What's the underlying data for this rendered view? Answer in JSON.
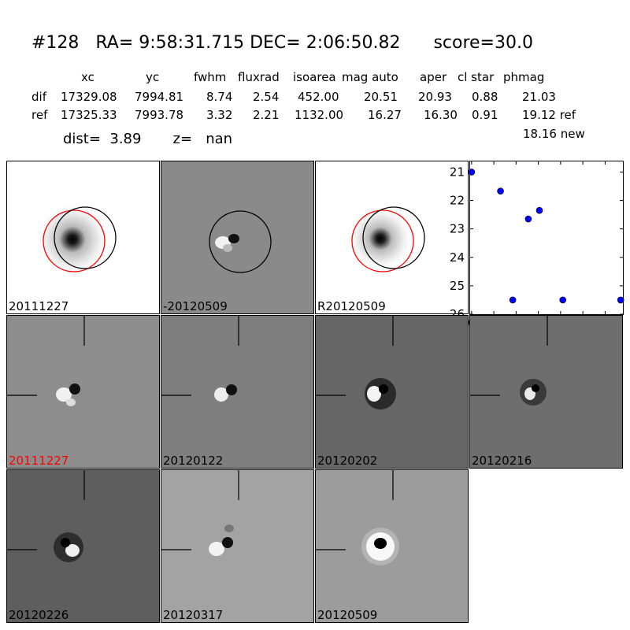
{
  "header": {
    "title": "#128   RA= 9:58:31.715 DEC= 2:06:50.82      score=30.0",
    "columns": {
      "xc": "xc",
      "yc": "yc",
      "fwhm": "fwhm",
      "fluxrad": "fluxrad",
      "isoarea": "isoarea",
      "magauto": "mag auto",
      "aper": "aper",
      "clstar": "cl star",
      "phmag": "phmag"
    },
    "dif": {
      "label": "dif",
      "xc": "17329.08",
      "yc": "7994.81",
      "fwhm": "8.74",
      "fluxrad": "2.54",
      "isoarea": "452.00",
      "magauto": "20.51",
      "aper": "20.93",
      "clstar": "0.88",
      "phmag": "21.03"
    },
    "ref": {
      "label": "ref",
      "xc": "17325.33",
      "yc": "7993.78",
      "fwhm": "3.32",
      "fluxrad": "2.21",
      "isoarea": "1132.00",
      "magauto": "16.27",
      "aper": "16.30",
      "clstar": "0.91",
      "phmag": "19.12 ref"
    },
    "new_mag": "18.16 new",
    "dist_line": "dist=  3.89       z=   nan"
  },
  "panels": [
    {
      "label": "20111227",
      "label_color": "#000000"
    },
    {
      "label": "-20120509",
      "label_color": "#000000"
    },
    {
      "label": "R20120509",
      "label_color": "#000000"
    },
    {
      "label": "20111227",
      "label_color": "#ff0000"
    },
    {
      "label": "20120122",
      "label_color": "#000000"
    },
    {
      "label": "20120202",
      "label_color": "#000000"
    },
    {
      "label": "20120216",
      "label_color": "#000000"
    },
    {
      "label": "20120226",
      "label_color": "#000000"
    },
    {
      "label": "20120317",
      "label_color": "#000000"
    },
    {
      "label": "20120509",
      "label_color": "#000000"
    }
  ],
  "chart_data": {
    "type": "scatter",
    "title": "",
    "xlabel": "",
    "ylabel": "",
    "xlim": [
      -2,
      136
    ],
    "ylim": [
      26,
      20.6
    ],
    "y_inverted": true,
    "x_ticks": [
      "0",
      "20",
      "40",
      "60",
      "80",
      "100",
      "120"
    ],
    "x_tick_values": [
      0,
      20,
      40,
      60,
      80,
      100,
      120
    ],
    "y_ticks": [
      "21",
      "22",
      "23",
      "24",
      "25",
      "26"
    ],
    "y_tick_values": [
      21,
      22,
      23,
      24,
      25,
      26
    ],
    "marker_color": "#0000ff",
    "series": [
      {
        "points": [
          {
            "x": 0,
            "y": 21.0
          },
          {
            "x": 26,
            "y": 21.67
          },
          {
            "x": 37,
            "y": 25.5
          },
          {
            "x": 51,
            "y": 22.65
          },
          {
            "x": 61,
            "y": 22.35
          },
          {
            "x": 82,
            "y": 25.5
          },
          {
            "x": 134,
            "y": 25.5
          }
        ]
      }
    ]
  }
}
